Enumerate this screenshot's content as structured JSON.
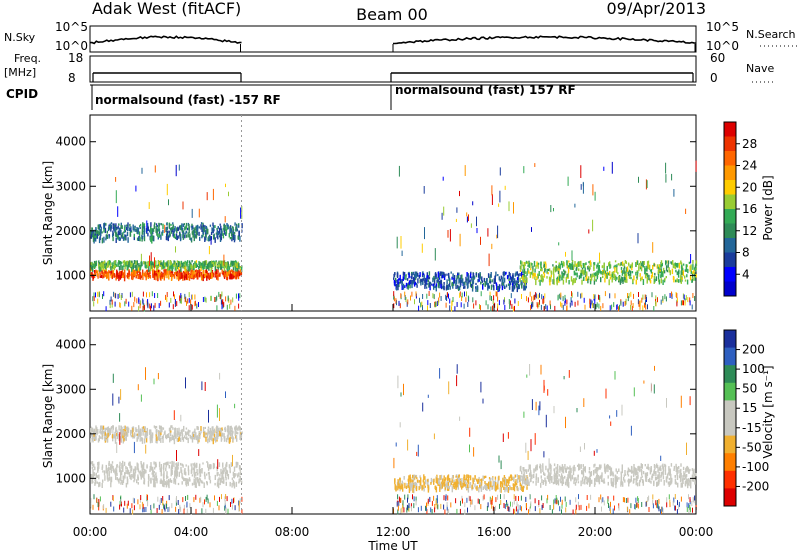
{
  "header": {
    "station": "Adak West (fitACF)",
    "beam": "Beam 00",
    "date": "09/Apr/2013"
  },
  "side_labels": {
    "nsky": "N.Sky",
    "nsearch": "N.Search",
    "freq_line1": "Freq.",
    "freq_line2": "[MHz]",
    "nave": "Nave",
    "cpid": "CPID"
  },
  "cpid_texts": [
    "normalsound (fast) -157 RF",
    "normalsound (fast) 157 RF"
  ],
  "noise_axis": {
    "left_ticks": [
      "10^5",
      "10^0"
    ],
    "right_ticks": [
      "10^5",
      "10^0"
    ]
  },
  "freq_axis": {
    "left_ticks": [
      "18",
      "8"
    ],
    "right_ticks": [
      "60",
      "0"
    ]
  },
  "colorbars": {
    "power": {
      "label": "Power [dB]",
      "ticks": [
        "28",
        "24",
        "20",
        "16",
        "12",
        "8",
        "4"
      ],
      "colors": [
        "#dd0000",
        "#ee3300",
        "#ff6600",
        "#ff9900",
        "#ffcc00",
        "#99cc33",
        "#33aa55",
        "#2e8b57",
        "#226699",
        "#1a3c9c",
        "#0000ff",
        "#0000cc"
      ]
    },
    "velocity": {
      "label": "Velocity [m s⁻¹]",
      "ticks": [
        "200",
        "100",
        "50",
        "15",
        "-15",
        "-50",
        "-100",
        "-200"
      ],
      "colors": [
        "#1a2f9c",
        "#2e5fc0",
        "#2e8b57",
        "#55c055",
        "#c8c8c0",
        "#c8c8c0",
        "#f0b030",
        "#ff7f00",
        "#ff3000",
        "#dd0000"
      ]
    }
  },
  "chart_data": [
    {
      "type": "heatmap",
      "title": "",
      "xlabel": "Time UT",
      "ylabel": "Slant Range [km]",
      "x_ticks": [
        "00:00",
        "04:00",
        "08:00",
        "12:00",
        "16:00",
        "20:00",
        "00:00"
      ],
      "xlim_hours": [
        0,
        24
      ],
      "ylim": [
        200,
        4600
      ],
      "y_ticks": [
        1000,
        2000,
        3000,
        4000
      ],
      "z_label": "Power [dB]",
      "data_gaps_hours": [
        [
          6,
          12
        ]
      ],
      "bands": [
        {
          "name": "",
          "t_start": 0,
          "t_end": 6,
          "range_start": 950,
          "range_end": 1100,
          "power_db": 26
        },
        {
          "name": "",
          "t_start": 0,
          "t_end": 6,
          "range_start": 1150,
          "range_end": 1300,
          "power_db": 14
        },
        {
          "name": "",
          "t_start": 0,
          "t_end": 6,
          "range_start": 1800,
          "range_end": 2150,
          "power_db": 9
        },
        {
          "name": "",
          "t_start": 12,
          "t_end": 17.3,
          "range_start": 700,
          "range_end": 1050,
          "power_db": 7
        },
        {
          "name": "",
          "t_start": 17,
          "t_end": 24,
          "range_start": 850,
          "range_end": 1300,
          "power_db": 15
        }
      ]
    },
    {
      "type": "heatmap",
      "title": "",
      "xlabel": "Time UT",
      "ylabel": "Slant Range [km]",
      "x_ticks": [
        "00:00",
        "04:00",
        "08:00",
        "12:00",
        "16:00",
        "20:00",
        "00:00"
      ],
      "xlim_hours": [
        0,
        24
      ],
      "ylim": [
        200,
        4600
      ],
      "y_ticks": [
        1000,
        2000,
        3000,
        4000
      ],
      "z_label": "Velocity [m s⁻¹]",
      "data_gaps_hours": [
        [
          6,
          12
        ]
      ],
      "bands": [
        {
          "name": "",
          "t_start": 0,
          "t_end": 6,
          "range_start": 850,
          "range_end": 1350,
          "velocity": 0
        },
        {
          "name": "",
          "t_start": 0,
          "t_end": 6,
          "range_start": 1850,
          "range_end": 2150,
          "velocity": -40
        },
        {
          "name": "",
          "t_start": 12,
          "t_end": 17.3,
          "range_start": 750,
          "range_end": 1050,
          "velocity": -60
        },
        {
          "name": "",
          "t_start": 17,
          "t_end": 24,
          "range_start": 850,
          "range_end": 1300,
          "velocity": 0
        }
      ]
    }
  ]
}
